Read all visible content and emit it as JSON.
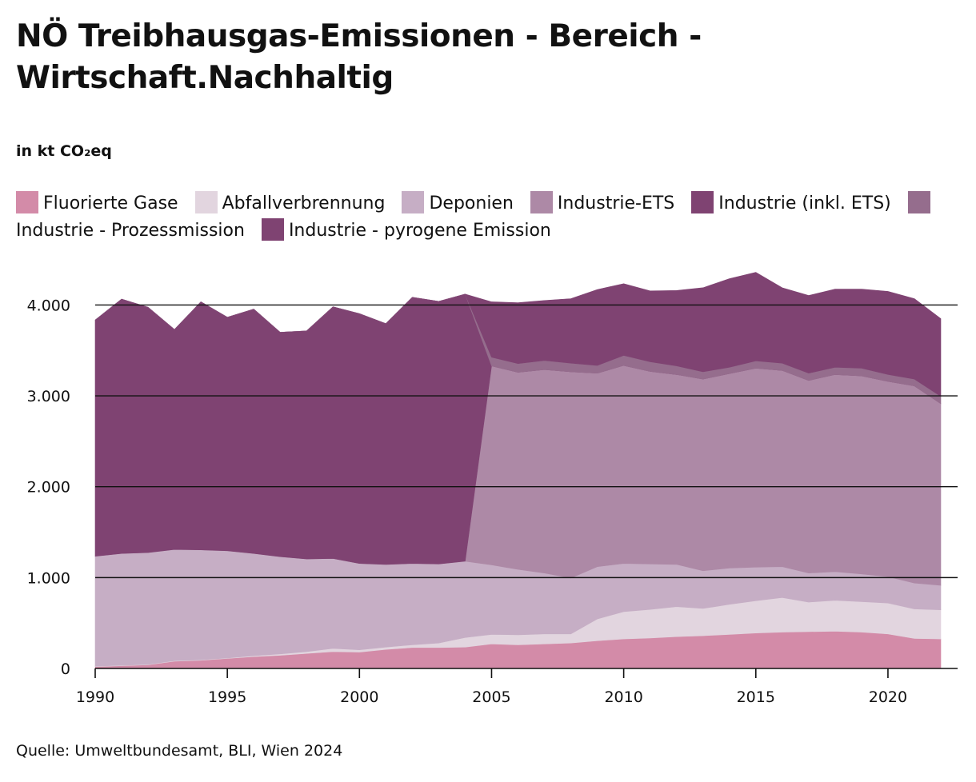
{
  "chart_data": {
    "type": "area",
    "stacked": true,
    "title": "NÖ Treibhausgas-Emissionen - Bereich - Wirtschaft.Nachhaltig",
    "subtitle": "in kt CO₂eq",
    "source": "Quelle: Umweltbundesamt, BLI, Wien 2024",
    "xlim": [
      1990,
      2022
    ],
    "ylim": [
      0,
      4400
    ],
    "x_ticks": [
      1990,
      1995,
      2000,
      2005,
      2010,
      2015,
      2020
    ],
    "x_tick_labels": [
      "1990",
      "1995",
      "2000",
      "2005",
      "2010",
      "2015",
      "2020"
    ],
    "y_ticks": [
      0,
      1000,
      2000,
      3000,
      4000
    ],
    "y_tick_labels": [
      "0",
      "1.000",
      "2.000",
      "3.000",
      "4.000"
    ],
    "grid": true,
    "legend_position": "top",
    "x": [
      1990,
      1991,
      1992,
      1993,
      1994,
      1995,
      1996,
      1997,
      1998,
      1999,
      2000,
      2001,
      2002,
      2003,
      2004,
      2005,
      2006,
      2007,
      2008,
      2009,
      2010,
      2011,
      2012,
      2013,
      2014,
      2015,
      2016,
      2017,
      2018,
      2019,
      2020,
      2021,
      2022
    ],
    "series": [
      {
        "name": "Fluorierte Gase",
        "color": "#d38ba8",
        "values": [
          20,
          30,
          40,
          80,
          90,
          110,
          130,
          145,
          165,
          185,
          180,
          210,
          230,
          230,
          235,
          270,
          260,
          270,
          280,
          305,
          325,
          335,
          350,
          360,
          375,
          390,
          400,
          405,
          410,
          400,
          380,
          330,
          325
        ]
      },
      {
        "name": "Abfallverbrennung",
        "color": "#e2d5df",
        "values": [
          5,
          5,
          5,
          5,
          5,
          5,
          10,
          15,
          20,
          35,
          25,
          25,
          30,
          50,
          105,
          105,
          110,
          110,
          100,
          240,
          300,
          315,
          330,
          300,
          330,
          355,
          380,
          325,
          340,
          335,
          340,
          325,
          320
        ]
      },
      {
        "name": "Deponien",
        "color": "#c6aec5",
        "values": [
          1210,
          1230,
          1230,
          1225,
          1210,
          1180,
          1125,
          1070,
          1020,
          990,
          950,
          910,
          895,
          870,
          840,
          765,
          720,
          670,
          615,
          575,
          530,
          500,
          465,
          415,
          400,
          370,
          340,
          320,
          315,
          305,
          290,
          285,
          270
        ]
      },
      {
        "name": "Industrie-ETS",
        "color": "#ad89a6",
        "values": [
          0,
          0,
          0,
          0,
          0,
          0,
          0,
          0,
          0,
          0,
          0,
          0,
          0,
          0,
          0,
          2190,
          2170,
          2240,
          2270,
          2130,
          2180,
          2120,
          2090,
          2110,
          2140,
          2190,
          2160,
          2120,
          2170,
          2180,
          2150,
          2170,
          2000
        ]
      },
      {
        "name": "Industrie (inkl. ETS)",
        "color": "#7f4372",
        "values": [
          2600,
          2800,
          2700,
          2420,
          2730,
          2570,
          2690,
          2470,
          2510,
          2770,
          2750,
          2650,
          2930,
          2890,
          2940,
          0,
          0,
          0,
          0,
          0,
          0,
          0,
          0,
          0,
          0,
          0,
          0,
          0,
          0,
          0,
          0,
          0,
          0
        ]
      },
      {
        "name": "Industrie - Prozessmission",
        "color": "#956d8d",
        "values": [
          0,
          0,
          0,
          0,
          0,
          0,
          0,
          0,
          0,
          0,
          0,
          0,
          0,
          0,
          0,
          95,
          95,
          100,
          95,
          85,
          110,
          105,
          95,
          80,
          70,
          80,
          80,
          80,
          80,
          85,
          75,
          75,
          80
        ]
      },
      {
        "name": "Industrie - pyrogene Emission",
        "color": "#7f4372",
        "values": [
          0,
          0,
          0,
          0,
          0,
          0,
          0,
          0,
          0,
          0,
          0,
          0,
          0,
          0,
          0,
          610,
          670,
          660,
          710,
          835,
          790,
          780,
          830,
          925,
          975,
          975,
          830,
          855,
          860,
          870,
          915,
          885,
          855
        ]
      }
    ]
  }
}
